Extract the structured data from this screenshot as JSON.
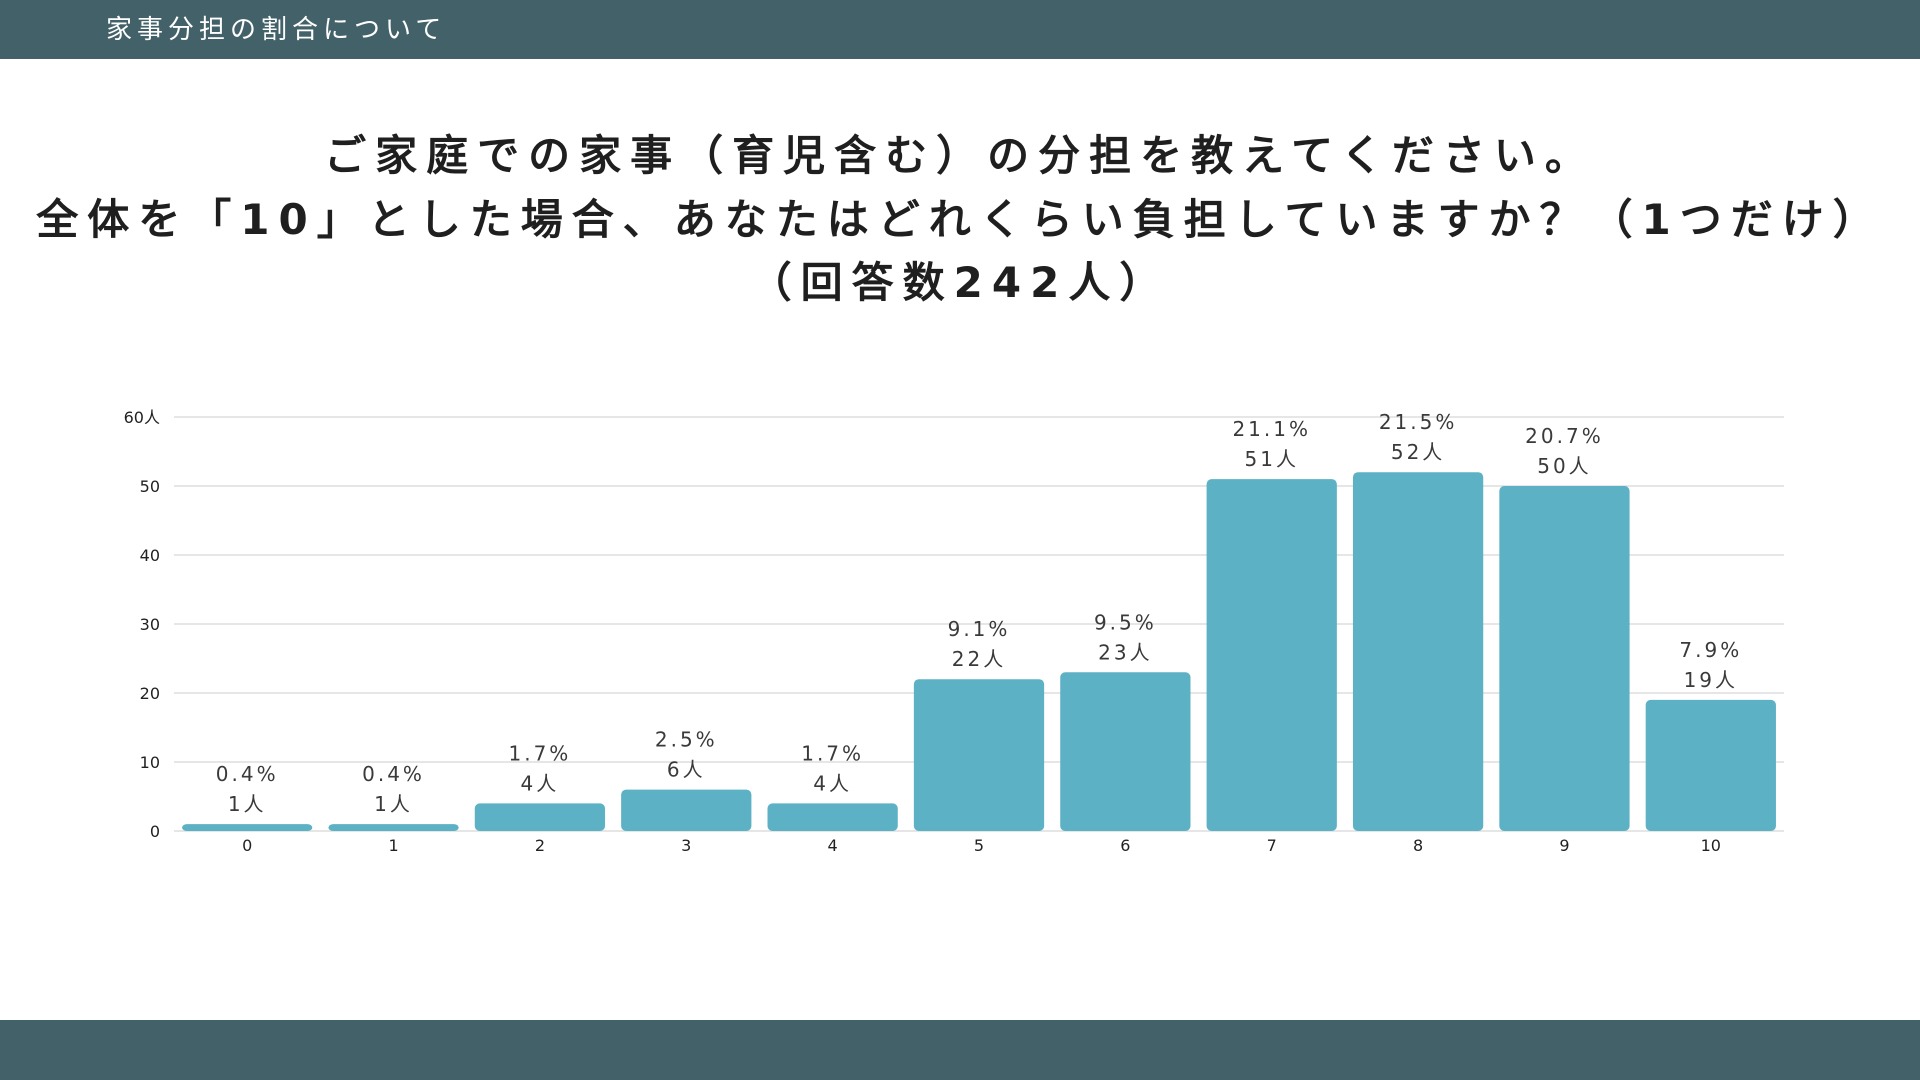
{
  "header": {
    "title": "家事分担の割合について"
  },
  "question": {
    "line1": "ご家庭での家事（育児含む）の分担を教えてください。",
    "line2": "全体を「10」とした場合、あなたはどれくらい負担していますか？（1つだけ）",
    "line3": "（回答数242人）"
  },
  "colors": {
    "bar": "#5cb1c5",
    "header": "#436169",
    "grid": "#d6d6d6"
  },
  "chart_data": {
    "type": "bar",
    "title": "",
    "xlabel": "",
    "ylabel": "人",
    "ylim": [
      0,
      60
    ],
    "yticks": [
      0,
      10,
      20,
      30,
      40,
      50,
      60
    ],
    "ytick_labels": [
      "0",
      "10",
      "20",
      "30",
      "40",
      "50",
      "60人"
    ],
    "categories": [
      "0",
      "1",
      "2",
      "3",
      "4",
      "5",
      "6",
      "7",
      "8",
      "9",
      "10"
    ],
    "values": [
      1,
      1,
      4,
      6,
      4,
      22,
      23,
      51,
      52,
      50,
      19
    ],
    "percent_labels": [
      "0.4%",
      "0.4%",
      "1.7%",
      "2.5%",
      "1.7%",
      "9.1%",
      "9.5%",
      "21.1%",
      "21.5%",
      "20.7%",
      "7.9%"
    ],
    "count_labels": [
      "1人",
      "1人",
      "4人",
      "6人",
      "4人",
      "22人",
      "23人",
      "51人",
      "52人",
      "50人",
      "19人"
    ],
    "grid": true,
    "legend": "none"
  }
}
